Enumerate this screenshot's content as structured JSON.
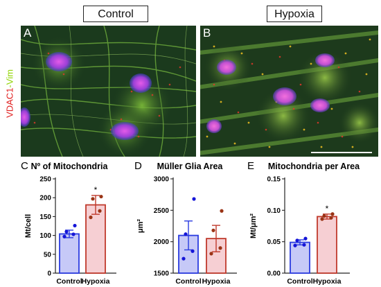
{
  "conditions": {
    "control": "Control",
    "hypoxia": "Hypoxia"
  },
  "stain": {
    "red": "VDAC1",
    "sep": "-",
    "green": "Vim"
  },
  "panels": [
    {
      "letter": "A"
    },
    {
      "letter": "B"
    }
  ],
  "colors": {
    "control": "#2a3be0",
    "control_fill": "#c6c9f7",
    "hypoxia": "#c0392b",
    "hypoxia_fill": "#f6cfd3",
    "control_dot": "#1515d8",
    "hypoxia_dot": "#9a3416"
  },
  "chart_data": [
    {
      "type": "bar",
      "panel": "C",
      "title": "Nº of Mitochondria",
      "ylabel": "Mt/cell",
      "ylim": [
        0,
        250
      ],
      "yticks": [
        "0",
        "50",
        "100",
        "150",
        "200",
        "250"
      ],
      "categories": [
        "Control",
        "Hypoxia"
      ],
      "values": [
        104,
        181
      ],
      "errors": [
        10,
        25
      ],
      "points": [
        [
          97,
          103,
          110,
          126
        ],
        [
          148,
          165,
          197,
          203
        ]
      ],
      "significance": [
        "",
        "*"
      ]
    },
    {
      "type": "bar",
      "panel": "D",
      "title": "Müller Glia Area",
      "ylabel": "μm²",
      "ylim": [
        1500,
        3000
      ],
      "yticks": [
        "1500",
        "2000",
        "2500",
        "3000"
      ],
      "categories": [
        "Control",
        "Hypoxia"
      ],
      "values": [
        2100,
        2050
      ],
      "errors": [
        230,
        210
      ],
      "points": [
        [
          1730,
          1850,
          2120,
          2680
        ],
        [
          1810,
          1900,
          2180,
          2490
        ]
      ],
      "significance": [
        "",
        ""
      ]
    },
    {
      "type": "bar",
      "panel": "E",
      "title": "Mitochondria per Area",
      "ylabel": "Mt/μm²",
      "ylim": [
        0,
        0.15
      ],
      "yticks": [
        "0.00",
        "0.05",
        "0.10",
        "0.15"
      ],
      "categories": [
        "Control",
        "Hypoxia"
      ],
      "values": [
        0.049,
        0.09
      ],
      "errors": [
        0.004,
        0.004
      ],
      "points": [
        [
          0.044,
          0.045,
          0.052,
          0.055
        ],
        [
          0.086,
          0.088,
          0.091,
          0.094
        ]
      ],
      "significance": [
        "",
        "*"
      ]
    }
  ]
}
